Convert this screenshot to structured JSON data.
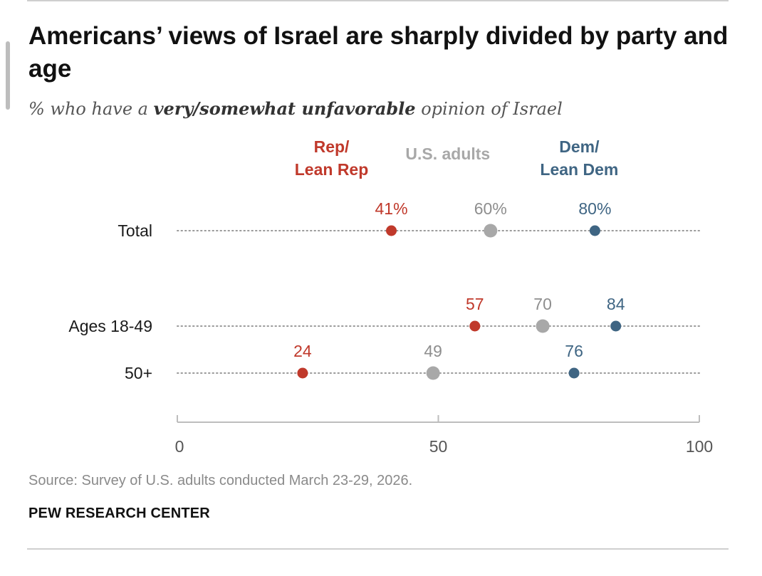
{
  "title": "Americans’ views of Israel are sharply divided by party and age",
  "subtitle": {
    "prefix": "% who have a ",
    "emphasis": "very/somewhat unfavorable",
    "suffix": " opinion of Israel"
  },
  "colors": {
    "rep": "#c0392b",
    "adults": "#a8a8a8",
    "dem": "#3f6583",
    "grid": "#9a9a9a",
    "axis": "#bdbdbd"
  },
  "chart_data": {
    "type": "dot",
    "title": "Americans’ views of Israel are sharply divided by party and age",
    "subtitle": "% who have a very/somewhat unfavorable opinion of Israel",
    "categories": [
      "Total",
      "Ages 18-49",
      "50+"
    ],
    "xlim": [
      0,
      100
    ],
    "xticks": [
      0,
      50,
      100
    ],
    "series": [
      {
        "key": "rep",
        "legend": [
          "Rep/",
          "Lean Rep"
        ],
        "values": [
          41,
          57,
          24
        ],
        "labels": [
          "41%",
          "57",
          "24"
        ]
      },
      {
        "key": "adults",
        "legend": [
          "U.S. adults"
        ],
        "values": [
          60,
          70,
          49
        ],
        "labels": [
          "60%",
          "70",
          "49"
        ]
      },
      {
        "key": "dem",
        "legend": [
          "Dem/",
          "Lean Dem"
        ],
        "values": [
          80,
          84,
          76
        ],
        "labels": [
          "80%",
          "84",
          "76"
        ]
      }
    ]
  },
  "source": "Source: Survey of U.S. adults conducted March 23-29, 2026.",
  "organization": "PEW RESEARCH CENTER"
}
